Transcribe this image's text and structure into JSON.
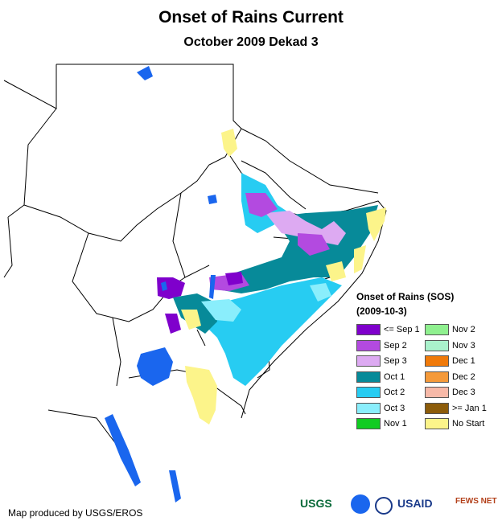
{
  "title": "Onset of Rains Current",
  "subtitle": "October 2009 Dekad 3",
  "legend": {
    "title": "Onset of Rains (SOS)",
    "period": "(2009-10-3)",
    "items": [
      {
        "label": "<= Sep 1",
        "color": "#7f00cc"
      },
      {
        "label": "Sep 2",
        "color": "#b34ae0"
      },
      {
        "label": "Sep 3",
        "color": "#ddaaf2"
      },
      {
        "label": "Oct 1",
        "color": "#078a99"
      },
      {
        "label": "Oct 2",
        "color": "#27ccf2"
      },
      {
        "label": "Oct 3",
        "color": "#8aeefc"
      },
      {
        "label": "Nov 1",
        "color": "#11cc22"
      },
      {
        "label": "Nov 2",
        "color": "#8ff08f"
      },
      {
        "label": "Nov 3",
        "color": "#aaf2cc"
      },
      {
        "label": "Dec 1",
        "color": "#f07a0a"
      },
      {
        "label": "Dec 2",
        "color": "#f59a3a"
      },
      {
        "label": "Dec 3",
        "color": "#f7b9a8"
      },
      {
        "label": ">= Jan 1",
        "color": "#8c5c0a"
      },
      {
        "label": "No Start",
        "color": "#fcf48a"
      }
    ]
  },
  "credit": "Map produced by USGS/EROS",
  "logos": {
    "usgs": "USGS",
    "usaid": "USAID",
    "fewsnet": "FEWS NET"
  },
  "colors": {
    "water": "#1a66ee",
    "border": "#000000"
  }
}
